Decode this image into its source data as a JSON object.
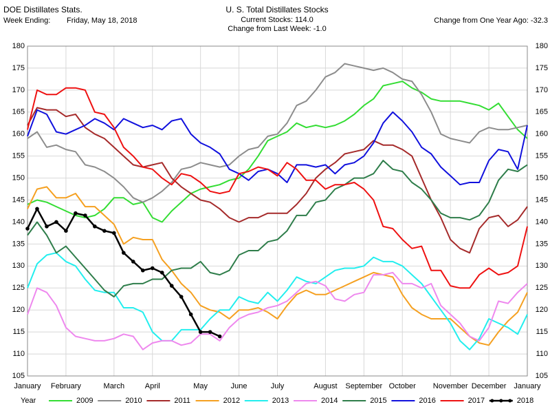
{
  "chart_data": {
    "type": "line",
    "source": "DOE Distillates Stats.",
    "week_ending_label": "Week Ending:",
    "week_ending": "Friday, May 18, 2018",
    "title": "U. S. Total Distillates Stocks",
    "current_stocks": "Current Stocks: 114.0",
    "weekly_change": "Change from Last Week: -1.0",
    "yearly_change": "Change from One Year Ago: -32.3",
    "legend_title": "Year",
    "categories": [
      "January",
      null,
      null,
      null,
      "February",
      null,
      null,
      null,
      null,
      "March",
      null,
      null,
      null,
      "April",
      null,
      null,
      null,
      null,
      "May",
      null,
      null,
      null,
      "June",
      null,
      null,
      null,
      "July",
      null,
      null,
      null,
      null,
      "August",
      null,
      null,
      null,
      "September",
      null,
      null,
      null,
      "October",
      null,
      null,
      null,
      null,
      "November",
      null,
      null,
      null,
      "December",
      null,
      null,
      null,
      "January"
    ],
    "ylim": [
      105,
      180
    ],
    "yticks": [
      105,
      110,
      115,
      120,
      125,
      130,
      135,
      140,
      145,
      150,
      155,
      160,
      165,
      170,
      175,
      180
    ],
    "grid": true,
    "series": [
      {
        "name": "2009",
        "color": "#33dd33",
        "values": [
          144,
          145,
          144.5,
          143.5,
          142.5,
          141.5,
          141,
          141.5,
          143,
          145.5,
          145.5,
          144,
          144.5,
          141,
          140,
          142.5,
          144.5,
          146.5,
          147.5,
          148,
          148.5,
          149.5,
          150,
          152,
          155,
          158.5,
          159.5,
          160.5,
          162.5,
          161.5,
          162,
          161.5,
          162,
          163,
          164.5,
          166.5,
          168,
          171,
          171.5,
          172,
          170.5,
          169.5,
          168,
          167.5,
          167.5,
          167.5,
          167,
          166.5,
          165.5,
          167,
          164,
          161,
          159
        ]
      },
      {
        "name": "2010",
        "color": "#8c8c8c",
        "values": [
          159,
          160.5,
          157,
          157.5,
          156.5,
          156,
          153,
          152.5,
          151.5,
          150,
          148,
          145.5,
          144.5,
          145.5,
          147,
          149,
          152,
          152.5,
          153.5,
          153,
          152.5,
          153,
          155,
          156.5,
          157,
          159.5,
          160,
          162.5,
          166.5,
          167.5,
          170,
          173,
          174,
          176,
          175.5,
          175,
          174.5,
          175,
          174,
          172.5,
          172,
          169,
          165,
          160,
          159,
          158.5,
          158,
          160.5,
          161.5,
          161,
          161,
          161.5,
          162
        ]
      },
      {
        "name": "2011",
        "color": "#a52a2a",
        "values": [
          162,
          166,
          165.5,
          165.5,
          164,
          164.5,
          161.5,
          160,
          159,
          157,
          155,
          153,
          152.5,
          153,
          153.5,
          150,
          148,
          146.5,
          145,
          144.5,
          143,
          141,
          140,
          141,
          141,
          142,
          142,
          142,
          144,
          146.5,
          150,
          152,
          153.5,
          155.5,
          156,
          156.5,
          158.5,
          157.5,
          157.5,
          156.5,
          155,
          150,
          145,
          141,
          136,
          134,
          133,
          138.5,
          141,
          141.5,
          139,
          140.5,
          143.5
        ]
      },
      {
        "name": "2012",
        "color": "#f5a020",
        "values": [
          143,
          147.5,
          148,
          145.5,
          145.5,
          146.5,
          143.5,
          143.5,
          141.5,
          139.5,
          135,
          136.5,
          136,
          136,
          131.5,
          129,
          126,
          124,
          121,
          120,
          119.5,
          118,
          120,
          120,
          120.5,
          119.5,
          118,
          121,
          123.5,
          124.5,
          123.5,
          123.5,
          124.5,
          125.5,
          126.5,
          127.5,
          128.5,
          128,
          127.5,
          123.5,
          120.5,
          119,
          118,
          118,
          118,
          116,
          114,
          112.5,
          112,
          115,
          117.5,
          119.5,
          124
        ]
      },
      {
        "name": "2013",
        "color": "#22eeee",
        "values": [
          125,
          130.5,
          132.5,
          133,
          131,
          130,
          127,
          124.5,
          124,
          124,
          120.5,
          120.5,
          119.5,
          115,
          113,
          113,
          115.5,
          115.5,
          115.5,
          118,
          120,
          120,
          123,
          122,
          121.5,
          124,
          122,
          124.5,
          127.5,
          126.5,
          126,
          127.5,
          129,
          129.5,
          129.5,
          130,
          132,
          131,
          131,
          130,
          128,
          126,
          123,
          120,
          117,
          113,
          111,
          113.5,
          118,
          117,
          116,
          114.5,
          119
        ]
      },
      {
        "name": "2014",
        "color": "#ee88ee",
        "values": [
          119,
          125,
          124,
          121,
          116,
          114,
          113.5,
          113,
          113,
          113.5,
          114.5,
          114,
          111,
          112.5,
          113,
          113,
          112,
          112.5,
          114.5,
          114.5,
          113,
          116,
          118,
          119,
          119.5,
          120.5,
          121,
          122,
          124,
          126,
          126.5,
          125.5,
          122.5,
          122,
          123.5,
          124,
          128,
          128,
          128.5,
          126,
          126,
          125,
          126,
          121,
          119,
          117,
          114,
          113,
          116,
          122,
          121.5,
          124,
          126
        ]
      },
      {
        "name": "2015",
        "color": "#2e7d4a",
        "values": [
          137,
          140,
          137,
          133,
          134.5,
          132,
          129.5,
          127,
          124.5,
          123,
          125.5,
          126,
          126,
          127,
          127,
          129,
          129.5,
          129.5,
          131,
          128.5,
          128,
          129,
          132.5,
          133.5,
          133.5,
          135.5,
          136,
          138,
          141.5,
          141.5,
          144.5,
          145,
          147.5,
          148.5,
          150,
          150,
          151,
          154,
          152,
          151.5,
          149,
          147.5,
          145,
          142,
          141,
          141,
          140.5,
          141.5,
          144.5,
          149.5,
          152,
          151.5,
          153
        ]
      },
      {
        "name": "2016",
        "color": "#1010dd",
        "values": [
          159.5,
          165.5,
          164.5,
          160.5,
          160,
          161,
          162,
          163.5,
          162.5,
          161,
          163.5,
          162.5,
          161.5,
          162,
          161,
          163,
          163.5,
          160,
          158,
          157,
          155.5,
          152,
          151,
          149.5,
          151.5,
          152,
          151,
          149,
          153,
          153,
          152.5,
          153,
          151,
          153,
          153.5,
          155,
          158,
          162.5,
          165,
          163,
          160.5,
          157,
          155.5,
          152.5,
          150.5,
          148.5,
          149,
          149,
          154,
          156.5,
          156,
          152,
          162
        ]
      },
      {
        "name": "2017",
        "color": "#ee1111",
        "values": [
          161,
          170,
          169,
          169,
          170.5,
          170.5,
          170,
          165,
          164.5,
          161.5,
          157,
          155,
          152.5,
          152,
          150,
          148.5,
          151,
          150.5,
          149,
          147,
          146.5,
          147,
          151,
          151.5,
          152.5,
          152,
          150.5,
          153.5,
          152,
          149.5,
          149.5,
          147.5,
          148.5,
          148.5,
          149,
          147.5,
          145,
          139,
          138.5,
          136,
          134,
          134.5,
          129,
          129,
          125.5,
          125,
          125,
          128,
          129.5,
          128,
          128.5,
          130,
          139
        ]
      },
      {
        "name": "2018",
        "color": "#000000",
        "markers": true,
        "values": [
          138.5,
          143,
          139,
          140,
          138,
          142,
          141.5,
          139,
          138,
          137.5,
          133,
          131,
          129,
          129.5,
          128.5,
          125.5,
          123,
          119,
          115,
          115,
          114,
          null,
          null,
          null,
          null,
          null,
          null,
          null,
          null,
          null,
          null,
          null,
          null,
          null,
          null,
          null,
          null,
          null,
          null,
          null,
          null,
          null,
          null,
          null,
          null,
          null,
          null,
          null,
          null,
          null,
          null,
          null,
          null
        ]
      }
    ]
  }
}
